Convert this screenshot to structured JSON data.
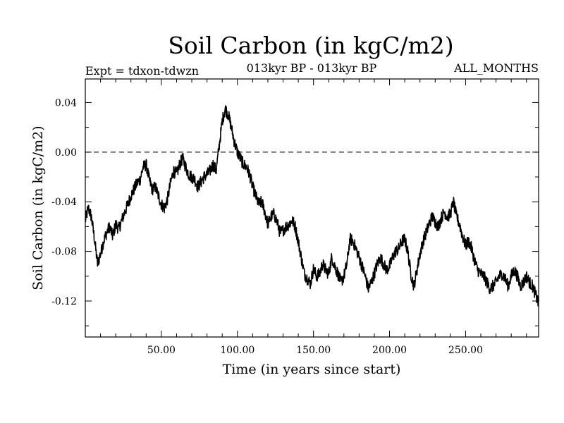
{
  "chart_data": {
    "type": "line",
    "title": "Soil Carbon (in kgC/m2)",
    "subtitle": "013kyr BP - 013kyr BP",
    "left_annotation": "Expt = tdxon-tdwzn",
    "right_annotation": "ALL_MONTHS",
    "xlabel": "Time (in years since start)",
    "ylabel": "Soil Carbon (in kgC/m2)",
    "xlim": [
      0,
      298
    ],
    "ylim": [
      -0.149,
      0.059
    ],
    "x_ticks": [
      50,
      100,
      150,
      200,
      250
    ],
    "x_tick_labels": [
      "50.00",
      "100.00",
      "150.00",
      "200.00",
      "250.00"
    ],
    "y_ticks": [
      0.04,
      0.0,
      -0.04,
      -0.08,
      -0.12
    ],
    "y_tick_labels": [
      "0.04",
      "0.00",
      "-0.04",
      "-0.08",
      "-0.12"
    ],
    "reference_line": {
      "y": 0.0,
      "style": "dashed"
    },
    "grid": false,
    "line_color": "#000000",
    "series": [
      {
        "x": [
          0,
          2,
          4,
          6,
          8,
          10,
          12,
          14,
          16,
          18,
          20,
          22,
          24,
          26,
          28,
          30,
          32,
          34,
          36,
          38,
          40,
          42,
          44,
          46,
          48,
          50,
          52,
          54,
          56,
          58,
          60,
          62,
          64,
          66,
          68,
          70,
          72,
          74,
          76,
          78,
          80,
          82,
          84,
          86,
          88,
          90,
          92,
          94,
          96,
          98,
          100,
          102,
          104,
          106,
          108,
          110,
          112,
          114,
          116,
          118,
          120,
          122,
          124,
          126,
          128,
          130,
          132,
          134,
          136,
          138,
          140,
          142,
          144,
          146,
          148,
          150,
          152,
          154,
          156,
          158,
          160,
          162,
          164,
          166,
          168,
          170,
          172,
          174,
          176,
          178,
          180,
          182,
          184,
          186,
          188,
          190,
          192,
          194,
          196,
          198,
          200,
          202,
          204,
          206,
          208,
          210,
          212,
          214,
          216,
          218,
          220,
          222,
          224,
          226,
          228,
          230,
          232,
          234,
          236,
          238,
          240,
          242,
          244,
          246,
          248,
          250,
          252,
          254,
          256,
          258,
          260,
          262,
          264,
          266,
          268,
          270,
          272,
          274,
          276,
          278,
          280,
          282,
          284,
          286,
          288,
          290,
          292,
          294,
          296,
          298
        ],
        "values": [
          -0.055,
          -0.045,
          -0.052,
          -0.07,
          -0.09,
          -0.082,
          -0.072,
          -0.065,
          -0.06,
          -0.068,
          -0.058,
          -0.062,
          -0.055,
          -0.048,
          -0.042,
          -0.035,
          -0.03,
          -0.025,
          -0.022,
          -0.012,
          -0.01,
          -0.022,
          -0.03,
          -0.028,
          -0.035,
          -0.042,
          -0.045,
          -0.038,
          -0.025,
          -0.015,
          -0.018,
          -0.01,
          -0.005,
          -0.012,
          -0.018,
          -0.02,
          -0.022,
          -0.028,
          -0.024,
          -0.02,
          -0.018,
          -0.015,
          -0.01,
          -0.015,
          0.005,
          0.025,
          0.035,
          0.03,
          0.02,
          0.008,
          0.0,
          -0.005,
          -0.01,
          -0.012,
          -0.018,
          -0.028,
          -0.035,
          -0.042,
          -0.04,
          -0.048,
          -0.058,
          -0.052,
          -0.05,
          -0.056,
          -0.065,
          -0.063,
          -0.06,
          -0.058,
          -0.055,
          -0.06,
          -0.072,
          -0.085,
          -0.098,
          -0.102,
          -0.106,
          -0.094,
          -0.1,
          -0.098,
          -0.09,
          -0.095,
          -0.098,
          -0.085,
          -0.092,
          -0.098,
          -0.105,
          -0.1,
          -0.09,
          -0.07,
          -0.072,
          -0.078,
          -0.085,
          -0.092,
          -0.1,
          -0.11,
          -0.105,
          -0.098,
          -0.09,
          -0.085,
          -0.09,
          -0.095,
          -0.092,
          -0.085,
          -0.08,
          -0.078,
          -0.072,
          -0.07,
          -0.08,
          -0.098,
          -0.108,
          -0.095,
          -0.082,
          -0.072,
          -0.065,
          -0.058,
          -0.052,
          -0.056,
          -0.06,
          -0.053,
          -0.048,
          -0.052,
          -0.05,
          -0.04,
          -0.052,
          -0.058,
          -0.068,
          -0.075,
          -0.072,
          -0.078,
          -0.088,
          -0.095,
          -0.098,
          -0.1,
          -0.105,
          -0.11,
          -0.108,
          -0.105,
          -0.1,
          -0.098,
          -0.102,
          -0.108,
          -0.1,
          -0.095,
          -0.1,
          -0.108,
          -0.105,
          -0.1,
          -0.105,
          -0.108,
          -0.115,
          -0.122
        ],
        "noise_amplitude": 0.005
      }
    ]
  }
}
